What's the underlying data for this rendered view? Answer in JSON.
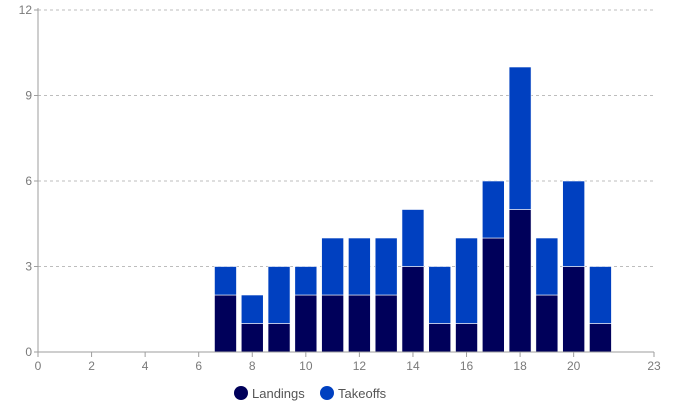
{
  "chart_data": {
    "type": "bar",
    "stacked": true,
    "x": [
      7,
      8,
      9,
      10,
      11,
      12,
      13,
      14,
      15,
      16,
      17,
      18,
      19,
      20,
      21
    ],
    "series": [
      {
        "name": "Landings",
        "color": "#00005a",
        "values": [
          2,
          1,
          1,
          2,
          2,
          2,
          2,
          3,
          1,
          1,
          4,
          5,
          2,
          3,
          1
        ]
      },
      {
        "name": "Takeoffs",
        "color": "#0040c0",
        "values": [
          1,
          1,
          2,
          1,
          2,
          2,
          2,
          2,
          2,
          3,
          2,
          5,
          2,
          3,
          2
        ]
      }
    ],
    "xlim": [
      0,
      23
    ],
    "ylim": [
      0,
      12
    ],
    "x_ticks": [
      "0",
      "2",
      "4",
      "6",
      "8",
      "10",
      "12",
      "14",
      "16",
      "18",
      "20",
      "23"
    ],
    "x_tick_values": [
      0,
      2,
      4,
      6,
      8,
      10,
      12,
      14,
      16,
      18,
      20,
      23
    ],
    "y_ticks": [
      "0",
      "3",
      "6",
      "9",
      "12"
    ],
    "y_tick_values": [
      0,
      3,
      6,
      9,
      12
    ],
    "grid": "horizontal-dashed",
    "legend_position": "bottom-center",
    "title": "",
    "xlabel": "",
    "ylabel": ""
  }
}
